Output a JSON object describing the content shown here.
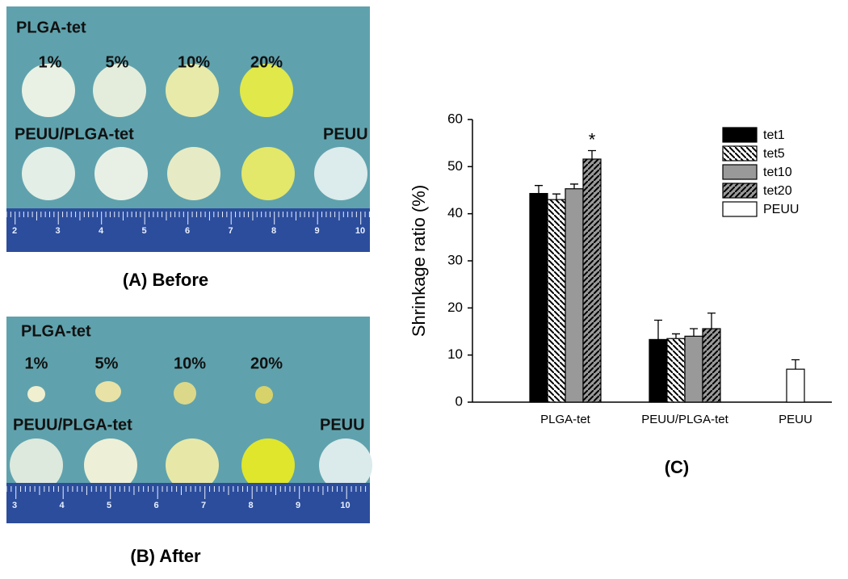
{
  "panels": {
    "a": {
      "caption": "(A) Before",
      "row1_label": "PLGA-tet",
      "percents": [
        "1%",
        "5%",
        "10%",
        "20%"
      ],
      "row2_label": "PEUU/PLGA-tet",
      "peuu_label": "PEUU",
      "ruler": [
        "2",
        "3",
        "4",
        "5",
        "6",
        "7",
        "8",
        "9",
        "10"
      ]
    },
    "b": {
      "caption": "(B) After",
      "row1_label": "PLGA-tet",
      "percents": [
        "1%",
        "5%",
        "10%",
        "20%"
      ],
      "row2_label": "PEUU/PLGA-tet",
      "peuu_label": "PEUU",
      "ruler": [
        "3",
        "4",
        "5",
        "6",
        "7",
        "8",
        "9",
        "10"
      ]
    }
  },
  "chart_data": {
    "type": "bar",
    "caption": "(C)",
    "ylabel": "Shrinkage ratio (%)",
    "categories": [
      "PLGA-tet",
      "PEUU/PLGA-tet",
      "PEUU"
    ],
    "series": [
      {
        "name": "tet1",
        "color": "#000000",
        "hatch": "none",
        "values": [
          44.3,
          13.3,
          null
        ],
        "errors": [
          1.7,
          4.1,
          null
        ]
      },
      {
        "name": "tet5",
        "color": "#ffffff",
        "hatch": "back",
        "values": [
          43,
          13.5,
          null
        ],
        "errors": [
          1.2,
          1,
          null
        ]
      },
      {
        "name": "tet10",
        "color": "#999999",
        "hatch": "none",
        "values": [
          45.3,
          14,
          null
        ],
        "errors": [
          1,
          1.6,
          null
        ]
      },
      {
        "name": "tet20",
        "color": "#999999",
        "hatch": "forward",
        "values": [
          51.6,
          15.6,
          null
        ],
        "errors": [
          1.8,
          3.3,
          null
        ]
      },
      {
        "name": "PEUU",
        "color": "#ffffff",
        "hatch": "none",
        "values": [
          null,
          null,
          7
        ],
        "errors": [
          null,
          null,
          2
        ]
      }
    ],
    "annotation": "*",
    "ylim": [
      0,
      60
    ],
    "yticks": [
      0,
      10,
      20,
      30,
      40,
      50,
      60
    ],
    "grid": false,
    "legend": "upper right"
  }
}
